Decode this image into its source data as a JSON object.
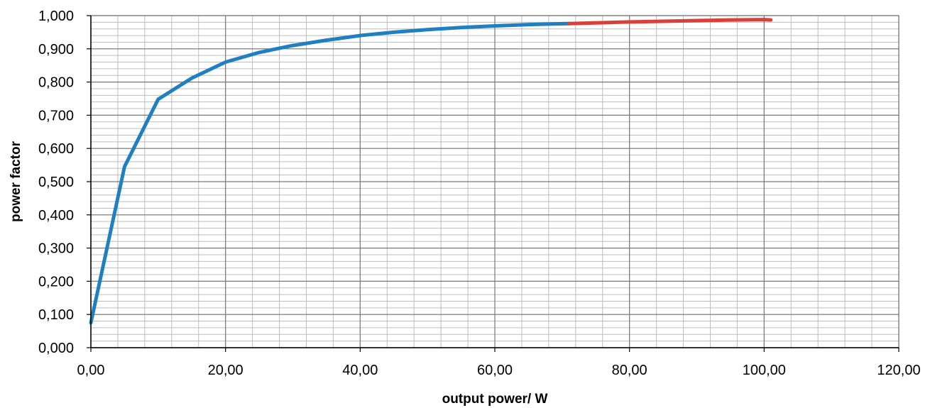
{
  "chart_data": {
    "type": "line",
    "title": "",
    "xlabel": "output power/ W",
    "ylabel": "power factor",
    "xlim": [
      0,
      120
    ],
    "ylim": [
      0,
      1
    ],
    "x_ticks": [
      0,
      20,
      40,
      60,
      80,
      100,
      120
    ],
    "x_tick_labels": [
      "0,00",
      "20,00",
      "40,00",
      "60,00",
      "80,00",
      "100,00",
      "120,00"
    ],
    "y_ticks": [
      0,
      0.1,
      0.2,
      0.3,
      0.4,
      0.5,
      0.6,
      0.7,
      0.8,
      0.9,
      1.0
    ],
    "y_tick_labels": [
      "0,000",
      "0,100",
      "0,200",
      "0,300",
      "0,400",
      "0,500",
      "0,600",
      "0,700",
      "0,800",
      "0,900",
      "1,000"
    ],
    "grid": true,
    "minor_grid": true,
    "legend": "none",
    "series": [
      {
        "color": "#1f7fbf",
        "points": [
          [
            0,
            0.075
          ],
          [
            5,
            0.545
          ],
          [
            10,
            0.748
          ],
          [
            15,
            0.812
          ],
          [
            20,
            0.86
          ],
          [
            25,
            0.889
          ],
          [
            30,
            0.91
          ],
          [
            35,
            0.926
          ],
          [
            40,
            0.94
          ],
          [
            45,
            0.95
          ],
          [
            50,
            0.958
          ],
          [
            55,
            0.964
          ],
          [
            60,
            0.969
          ],
          [
            65,
            0.973
          ],
          [
            71,
            0.976
          ]
        ]
      },
      {
        "color": "#d9403a",
        "points": [
          [
            71,
            0.976
          ],
          [
            75,
            0.978
          ],
          [
            80,
            0.981
          ],
          [
            85,
            0.983
          ],
          [
            90,
            0.985
          ],
          [
            95,
            0.987
          ],
          [
            100,
            0.988
          ],
          [
            101,
            0.987
          ]
        ]
      }
    ]
  }
}
